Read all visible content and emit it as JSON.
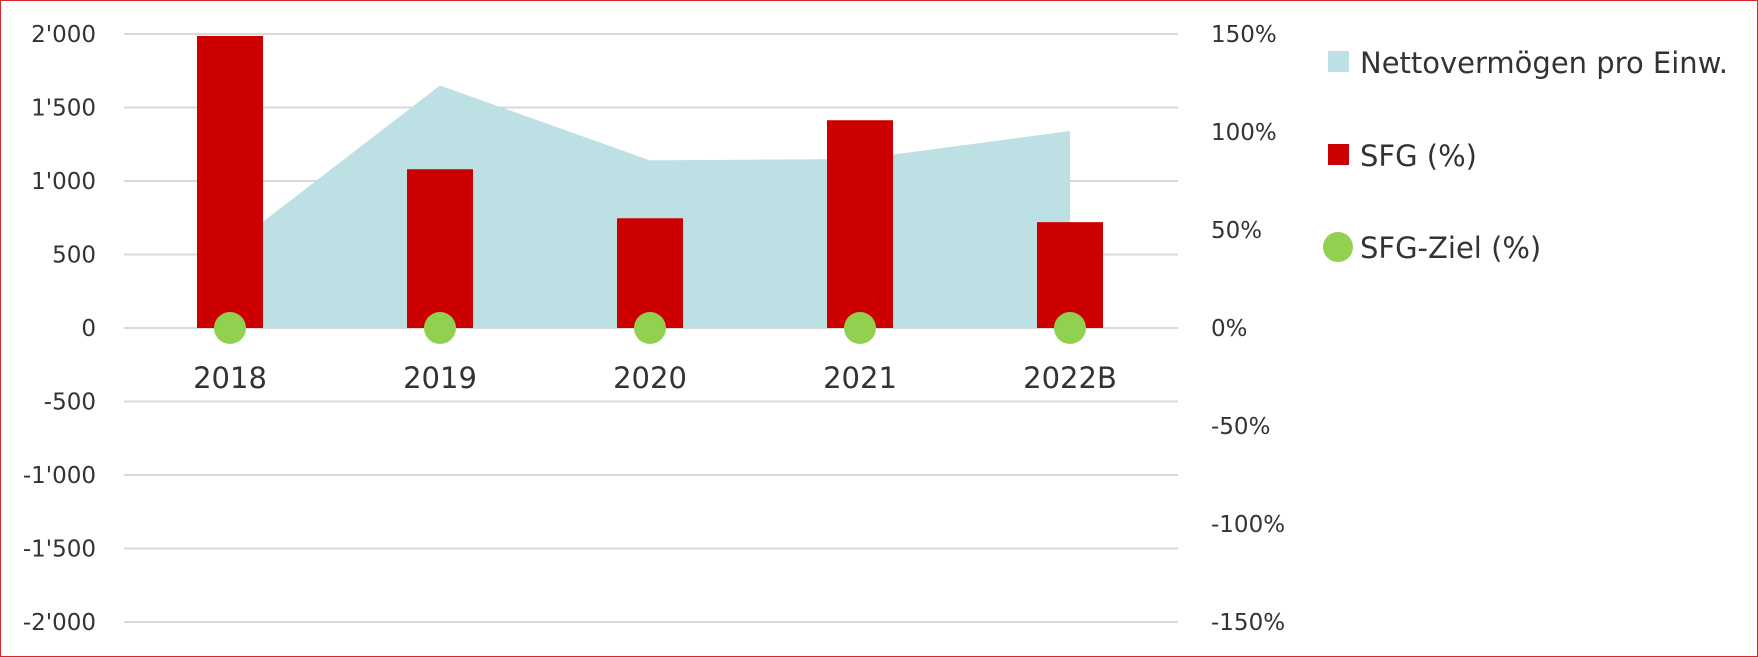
{
  "chart_data": {
    "type": "bar",
    "categories": [
      "2018",
      "2019",
      "2020",
      "2021",
      "2022B"
    ],
    "left_axis": {
      "ylim": [
        -2000,
        2000
      ],
      "ticks": [
        2000,
        1500,
        1000,
        500,
        0,
        -500,
        -1000,
        -1500,
        -2000
      ],
      "tick_labels": [
        "2'000",
        "1'500",
        "1'000",
        "500",
        "0",
        "-500",
        "-1'000",
        "-1'500",
        "-2'000"
      ]
    },
    "right_axis": {
      "ylim": [
        -150,
        150
      ],
      "unit": "%",
      "ticks": [
        150,
        100,
        50,
        0,
        -50,
        -100,
        -150
      ],
      "tick_labels": [
        "150%",
        "100%",
        "50%",
        "0%",
        "-50%",
        "-100%",
        "-150%"
      ]
    },
    "series": [
      {
        "name": "Nettovermögen pro Einw.",
        "type": "area",
        "axis": "left",
        "color": "#bde0e4",
        "values": [
          550,
          1650,
          1140,
          1150,
          1340
        ]
      },
      {
        "name": "SFG (%)",
        "type": "bar",
        "axis": "right",
        "color": "#cc0000",
        "values": [
          149,
          81,
          56,
          106,
          54
        ]
      },
      {
        "name": "SFG-Ziel (%)",
        "type": "scatter",
        "axis": "right",
        "color": "#92d050",
        "values": [
          0,
          0,
          0,
          0,
          0
        ]
      }
    ],
    "grid": true,
    "legend_position": "right"
  },
  "colors": {
    "frame_border": "#d9272e",
    "gridline": "#d9d9d9"
  }
}
